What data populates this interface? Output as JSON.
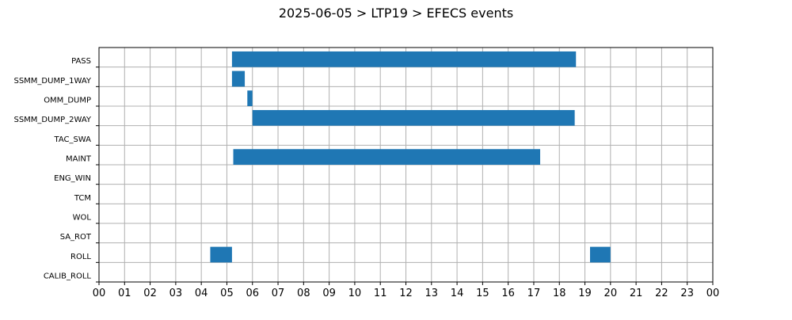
{
  "chart_data": {
    "type": "bar",
    "orientation": "horizontal",
    "title": "2025-06-05 > LTP19 > EFECS events",
    "xlabel": "",
    "ylabel": "",
    "xlim": [
      0,
      24
    ],
    "x_ticks": [
      "00",
      "01",
      "02",
      "03",
      "04",
      "05",
      "06",
      "07",
      "08",
      "09",
      "10",
      "11",
      "12",
      "13",
      "14",
      "15",
      "16",
      "17",
      "18",
      "19",
      "20",
      "21",
      "22",
      "23",
      "00"
    ],
    "categories": [
      "PASS",
      "SSMM_DUMP_1WAY",
      "OMM_DUMP",
      "SSMM_DUMP_2WAY",
      "TAC_SWA",
      "MAINT",
      "ENG_WIN",
      "TCM",
      "WOL",
      "SA_ROT",
      "ROLL",
      "CALIB_ROLL"
    ],
    "intervals": [
      {
        "category": "PASS",
        "start": 5.2,
        "end": 18.65
      },
      {
        "category": "SSMM_DUMP_1WAY",
        "start": 5.2,
        "end": 5.7
      },
      {
        "category": "OMM_DUMP",
        "start": 5.8,
        "end": 6.0
      },
      {
        "category": "SSMM_DUMP_2WAY",
        "start": 6.0,
        "end": 18.6
      },
      {
        "category": "MAINT",
        "start": 5.25,
        "end": 17.25
      },
      {
        "category": "ROLL",
        "start": 4.35,
        "end": 5.2
      },
      {
        "category": "ROLL",
        "start": 19.2,
        "end": 20.0
      }
    ],
    "bar_color": "#1f77b4",
    "grid": true,
    "legend": "none"
  }
}
